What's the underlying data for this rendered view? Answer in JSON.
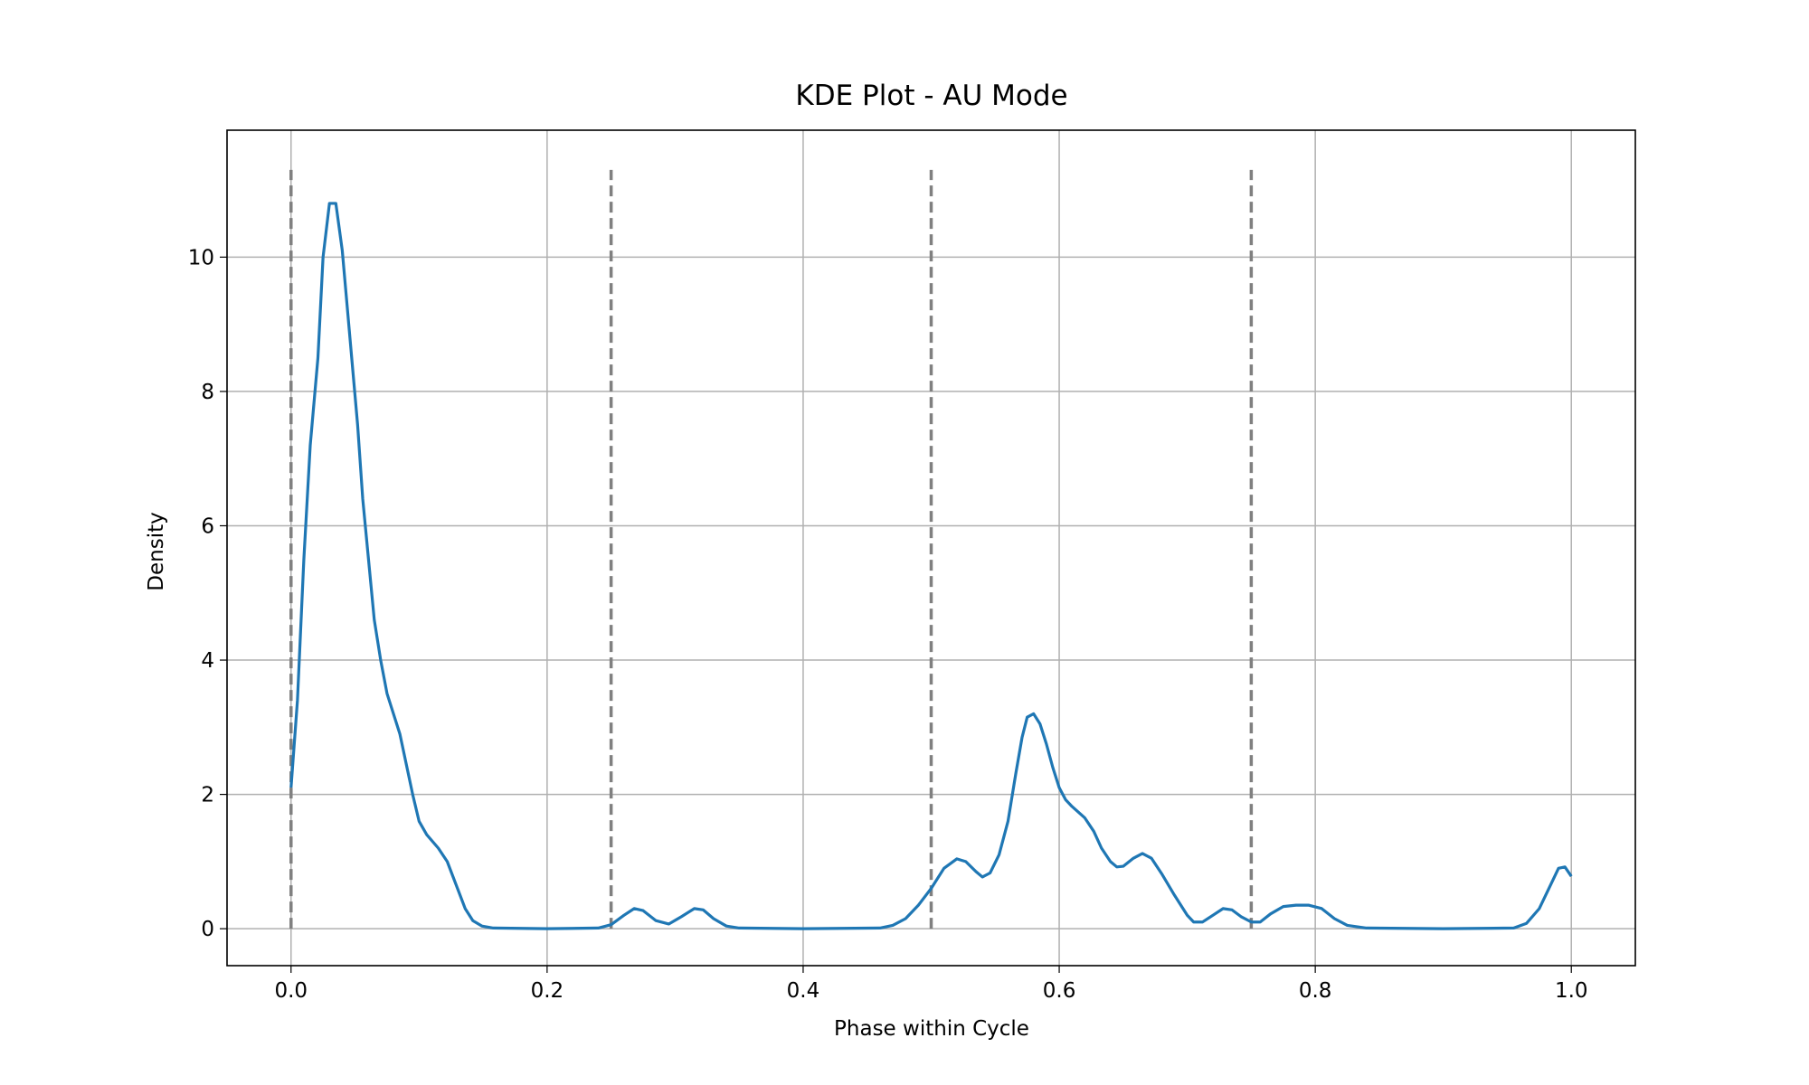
{
  "chart_data": {
    "type": "line",
    "title": "KDE Plot - AU Mode",
    "xlabel": "Phase within Cycle",
    "ylabel": "Density",
    "x": [
      0,
      0.005,
      0.01,
      0.015,
      0.021,
      0.025,
      0.03,
      0.035,
      0.04,
      0.046,
      0.052,
      0.056,
      0.061,
      0.065,
      0.07,
      0.075,
      0.085,
      0.095,
      0.1,
      0.106,
      0.115,
      0.122,
      0.13,
      0.136,
      0.142,
      0.149,
      0.158,
      0.2,
      0.24,
      0.25,
      0.26,
      0.268,
      0.275,
      0.285,
      0.295,
      0.305,
      0.315,
      0.322,
      0.33,
      0.34,
      0.35,
      0.4,
      0.46,
      0.47,
      0.48,
      0.49,
      0.5,
      0.51,
      0.52,
      0.527,
      0.535,
      0.54,
      0.546,
      0.553,
      0.56,
      0.566,
      0.571,
      0.575,
      0.58,
      0.585,
      0.59,
      0.595,
      0.6,
      0.605,
      0.61,
      0.62,
      0.627,
      0.633,
      0.64,
      0.645,
      0.65,
      0.658,
      0.665,
      0.672,
      0.68,
      0.69,
      0.7,
      0.705,
      0.712,
      0.72,
      0.728,
      0.735,
      0.742,
      0.75,
      0.757,
      0.765,
      0.775,
      0.785,
      0.795,
      0.805,
      0.815,
      0.825,
      0.84,
      0.9,
      0.955,
      0.965,
      0.975,
      0.985,
      0.99,
      0.995,
      1.0
    ],
    "values": [
      2.1,
      3.4,
      5.5,
      7.2,
      8.5,
      10.0,
      10.8,
      10.8,
      10.1,
      8.8,
      7.5,
      6.4,
      5.4,
      4.6,
      4.0,
      3.5,
      2.9,
      2.0,
      1.6,
      1.4,
      1.2,
      1.0,
      0.6,
      0.3,
      0.12,
      0.04,
      0.01,
      0,
      0.01,
      0.06,
      0.2,
      0.3,
      0.27,
      0.12,
      0.07,
      0.18,
      0.3,
      0.28,
      0.15,
      0.04,
      0.01,
      0,
      0.01,
      0.05,
      0.15,
      0.35,
      0.6,
      0.9,
      1.04,
      1.0,
      0.85,
      0.77,
      0.83,
      1.1,
      1.6,
      2.3,
      2.85,
      3.15,
      3.2,
      3.05,
      2.75,
      2.4,
      2.1,
      1.92,
      1.82,
      1.65,
      1.45,
      1.2,
      1.0,
      0.92,
      0.93,
      1.05,
      1.12,
      1.05,
      0.82,
      0.5,
      0.2,
      0.1,
      0.1,
      0.2,
      0.3,
      0.28,
      0.18,
      0.1,
      0.1,
      0.22,
      0.33,
      0.35,
      0.35,
      0.3,
      0.15,
      0.05,
      0.01,
      0,
      0.01,
      0.08,
      0.3,
      0.7,
      0.9,
      0.92,
      0.78
    ],
    "color": "#1f77b4",
    "vlines": [
      0,
      0.25,
      0.5,
      0.75
    ],
    "vline_ylim": [
      0,
      11.3
    ],
    "vline_color": "#808080",
    "xlim": [
      -0.05,
      1.05
    ],
    "ylim": [
      -0.55,
      11.89
    ],
    "xticks": [
      {
        "value": 0,
        "label": "0.0"
      },
      0.2,
      0.4,
      0.6,
      0.8,
      {
        "value": 1,
        "label": "1.0"
      }
    ],
    "yticks": [
      0,
      2,
      4,
      6,
      8,
      10
    ],
    "grid": true
  }
}
